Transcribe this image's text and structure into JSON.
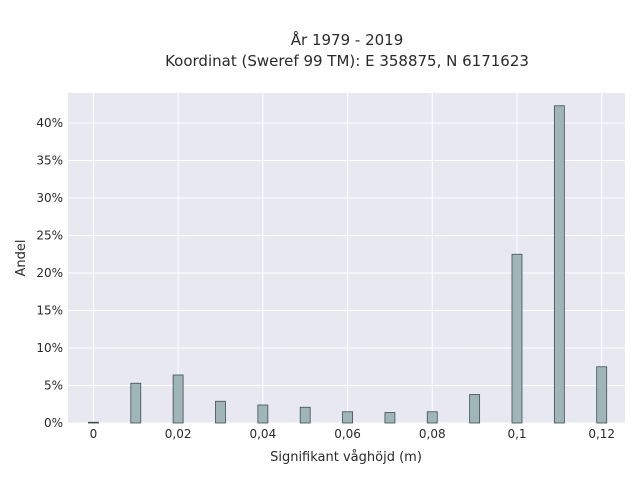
{
  "chart_data": {
    "type": "bar",
    "title_lines": [
      "År 1979 - 2019",
      "Koordinat (Sweref 99 TM): E 358875, N 6171623"
    ],
    "xlabel": "Signifikant våghöjd (m)",
    "ylabel": "Andel",
    "x": [
      0,
      0.01,
      0.02,
      0.03,
      0.04,
      0.05,
      0.06,
      0.07,
      0.08,
      0.09,
      0.1,
      0.11,
      0.12
    ],
    "values": [
      0.1,
      5.3,
      6.4,
      2.9,
      2.4,
      2.1,
      1.5,
      1.4,
      1.5,
      3.8,
      22.5,
      42.3,
      7.5
    ],
    "xlim": [
      -0.006,
      0.1255
    ],
    "ylim": [
      0,
      44
    ],
    "x_ticks": [
      0,
      0.02,
      0.04,
      0.06,
      0.08,
      0.1,
      0.12
    ],
    "x_tick_labels": [
      "0",
      "0,02",
      "0,04",
      "0,06",
      "0,08",
      "0,1",
      "0,12"
    ],
    "y_ticks": [
      0,
      5,
      10,
      15,
      20,
      25,
      30,
      35,
      40
    ],
    "y_tick_labels": [
      "0%",
      "5%",
      "10%",
      "15%",
      "20%",
      "25%",
      "30%",
      "35%",
      "40%"
    ],
    "grid": true,
    "colors": {
      "bar_fill": "#9fb5b6",
      "bar_stroke": "#3f4f50",
      "plot_bg": "#e8e8f0",
      "grid": "#ffffff"
    }
  }
}
